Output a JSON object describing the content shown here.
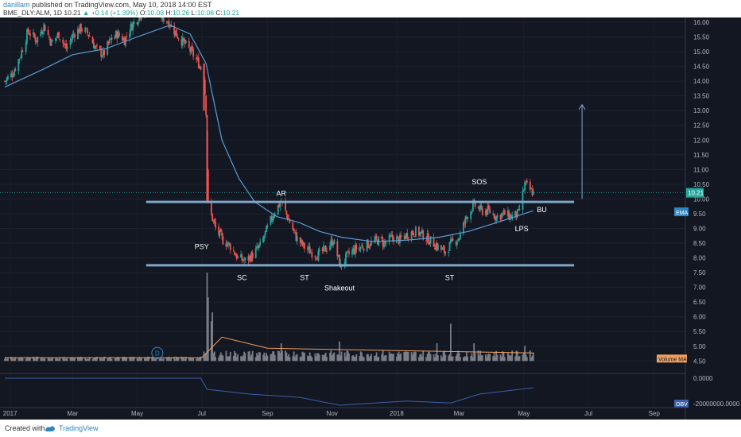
{
  "header": {
    "user": "danillam",
    "published": "published on TradingView.com, May 10, 2018 14:00 EST",
    "symbol": "BME_DLY:ALM, 1D",
    "last": "10.21",
    "change": "+0.14 (+1.39%)",
    "o_label": "O:",
    "o": "10.08",
    "h_label": "H:",
    "h": "10.26",
    "l_label": "L:",
    "l": "10.08",
    "c_label": "C:",
    "c": "10.21"
  },
  "footer": {
    "created_with": "Created with",
    "brand": "TradingView"
  },
  "colors": {
    "background": "#131722",
    "up": "#26a69a",
    "down": "#ef5350",
    "ema": "#5b9bd5",
    "range_lines": "#7fa7c9",
    "annotation_text": "#ffffff",
    "volume": "#7a7d85",
    "volume_ma": "#f0a060",
    "obv": "#3d5fa8"
  },
  "chart_data": {
    "type": "candlestick",
    "symbol": "BME_DLY:ALM",
    "interval": "1D",
    "x_ticks": [
      "2017",
      "Mar",
      "May",
      "Jul",
      "Sep",
      "Nov",
      "2018",
      "Mar",
      "May",
      "Jul",
      "Sep"
    ],
    "y_ticks": [
      "16.00",
      "15.50",
      "15.00",
      "14.50",
      "14.00",
      "13.50",
      "13.00",
      "12.50",
      "12.00",
      "11.50",
      "11.00",
      "10.50",
      "10.00",
      "9.50",
      "9.00",
      "8.50",
      "8.00",
      "7.50",
      "7.00",
      "6.50",
      "6.00",
      "5.50",
      "5.00",
      "4.50"
    ],
    "ylim": [
      4.4,
      16.0
    ],
    "price_path": [
      [
        "2016-12-27",
        14.0
      ],
      [
        "2017-01-04",
        14.3
      ],
      [
        "2017-01-11",
        14.9
      ],
      [
        "2017-01-18",
        15.7
      ],
      [
        "2017-01-26",
        15.4
      ],
      [
        "2017-02-02",
        15.9
      ],
      [
        "2017-02-09",
        15.3
      ],
      [
        "2017-02-16",
        15.6
      ],
      [
        "2017-02-23",
        15.1
      ],
      [
        "2017-03-02",
        15.6
      ],
      [
        "2017-03-09",
        15.8
      ],
      [
        "2017-03-16",
        15.6
      ],
      [
        "2017-03-23",
        15.1
      ],
      [
        "2017-03-30",
        14.9
      ],
      [
        "2017-04-06",
        15.4
      ],
      [
        "2017-04-12",
        15.6
      ],
      [
        "2017-04-19",
        15.4
      ],
      [
        "2017-04-26",
        15.9
      ],
      [
        "2017-05-03",
        16.2
      ],
      [
        "2017-05-10",
        16.6
      ],
      [
        "2017-05-17",
        16.4
      ],
      [
        "2017-05-24",
        16.2
      ],
      [
        "2017-05-31",
        16.0
      ],
      [
        "2017-06-07",
        15.6
      ],
      [
        "2017-06-14",
        15.3
      ],
      [
        "2017-06-21",
        15.0
      ],
      [
        "2017-06-28",
        14.6
      ],
      [
        "2017-07-03",
        14.2
      ],
      [
        "2017-07-05",
        13.0
      ],
      [
        "2017-07-06",
        11.0
      ],
      [
        "2017-07-07",
        9.8
      ],
      [
        "2017-07-14",
        9.0
      ],
      [
        "2017-07-21",
        8.6
      ],
      [
        "2017-07-28",
        8.4
      ],
      [
        "2017-08-04",
        8.0
      ],
      [
        "2017-08-11",
        7.9
      ],
      [
        "2017-08-18",
        8.1
      ],
      [
        "2017-08-25",
        8.4
      ],
      [
        "2017-09-01",
        9.0
      ],
      [
        "2017-09-08",
        9.6
      ],
      [
        "2017-09-14",
        9.9
      ],
      [
        "2017-09-21",
        9.3
      ],
      [
        "2017-09-28",
        8.7
      ],
      [
        "2017-10-05",
        8.4
      ],
      [
        "2017-10-12",
        8.2
      ],
      [
        "2017-10-19",
        8.1
      ],
      [
        "2017-10-26",
        8.3
      ],
      [
        "2017-11-02",
        8.6
      ],
      [
        "2017-11-09",
        7.7
      ],
      [
        "2017-11-16",
        8.1
      ],
      [
        "2017-11-23",
        8.3
      ],
      [
        "2017-11-30",
        8.4
      ],
      [
        "2017-12-07",
        8.5
      ],
      [
        "2017-12-14",
        8.6
      ],
      [
        "2017-12-21",
        8.5
      ],
      [
        "2017-12-28",
        8.7
      ],
      [
        "2018-01-04",
        8.6
      ],
      [
        "2018-01-11",
        8.8
      ],
      [
        "2018-01-18",
        8.9
      ],
      [
        "2018-01-25",
        8.8
      ],
      [
        "2018-02-01",
        8.6
      ],
      [
        "2018-02-08",
        8.4
      ],
      [
        "2018-02-15",
        8.2
      ],
      [
        "2018-02-22",
        8.5
      ],
      [
        "2018-03-01",
        8.7
      ],
      [
        "2018-03-08",
        9.4
      ],
      [
        "2018-03-15",
        9.8
      ],
      [
        "2018-03-22",
        9.6
      ],
      [
        "2018-03-29",
        9.6
      ],
      [
        "2018-04-05",
        9.4
      ],
      [
        "2018-04-12",
        9.5
      ],
      [
        "2018-04-19",
        9.4
      ],
      [
        "2018-04-26",
        9.5
      ],
      [
        "2018-05-02",
        10.5
      ],
      [
        "2018-05-07",
        10.3
      ],
      [
        "2018-05-10",
        10.21
      ]
    ],
    "ema": [
      [
        "2016-12-27",
        13.8
      ],
      [
        "2017-02-01",
        14.4
      ],
      [
        "2017-03-01",
        14.9
      ],
      [
        "2017-04-01",
        15.1
      ],
      [
        "2017-05-01",
        15.5
      ],
      [
        "2017-06-01",
        15.9
      ],
      [
        "2017-06-20",
        15.6
      ],
      [
        "2017-07-05",
        14.6
      ],
      [
        "2017-07-20",
        12.0
      ],
      [
        "2017-08-05",
        10.7
      ],
      [
        "2017-08-20",
        9.9
      ],
      [
        "2017-09-10",
        9.4
      ],
      [
        "2017-10-01",
        9.2
      ],
      [
        "2017-10-20",
        8.9
      ],
      [
        "2017-11-10",
        8.7
      ],
      [
        "2017-12-10",
        8.55
      ],
      [
        "2018-01-10",
        8.6
      ],
      [
        "2018-02-10",
        8.7
      ],
      [
        "2018-03-10",
        8.9
      ],
      [
        "2018-04-10",
        9.25
      ],
      [
        "2018-05-10",
        9.6
      ]
    ],
    "resistance": {
      "value": 9.9,
      "from": "2017-07-01",
      "to": "2018-07-22"
    },
    "support": {
      "value": 7.75,
      "from": "2017-07-01",
      "to": "2018-07-22"
    },
    "target_arrow": {
      "x": "2018-06-25",
      "from": 10.0,
      "to": 13.2
    },
    "annotations": [
      {
        "label": "PSY",
        "x": "2017-07-01",
        "y": 8.3
      },
      {
        "label": "SC",
        "x": "2017-08-08",
        "y": 7.25
      },
      {
        "label": "AR",
        "x": "2017-09-14",
        "y": 10.1
      },
      {
        "label": "ST",
        "x": "2017-10-06",
        "y": 7.25
      },
      {
        "label": "Shakeout",
        "x": "2017-11-08",
        "y": 6.9
      },
      {
        "label": "ST",
        "x": "2018-02-20",
        "y": 7.25
      },
      {
        "label": "SOS",
        "x": "2018-03-20",
        "y": 10.5
      },
      {
        "label": "BU",
        "x": "2018-05-18",
        "y": 9.55
      },
      {
        "label": "LPS",
        "x": "2018-04-29",
        "y": 8.9
      }
    ],
    "price_label": "10.21",
    "ema_label": "EMA",
    "volume_label": "Volume MA",
    "obv_label": "OBV",
    "obv_axis_ticks": [
      "0.0000",
      "-20000000.0000"
    ],
    "event_marker": "D",
    "volume_spikes": [
      [
        "2017-07-06",
        1.0
      ],
      [
        "2017-07-07",
        0.72
      ],
      [
        "2017-07-10",
        0.45
      ],
      [
        "2017-07-11",
        0.55
      ],
      [
        "2017-09-14",
        0.2
      ],
      [
        "2017-11-08",
        0.22
      ],
      [
        "2018-02-21",
        0.42
      ],
      [
        "2018-02-08",
        0.2
      ],
      [
        "2018-03-15",
        0.2
      ],
      [
        "2018-05-02",
        0.17
      ]
    ],
    "obv_path": [
      [
        "2016-12-27",
        0.0
      ],
      [
        "2017-06-30",
        0.0
      ],
      [
        "2017-07-06",
        -0.35
      ],
      [
        "2017-08-15",
        -0.5
      ],
      [
        "2017-10-01",
        -0.6
      ],
      [
        "2017-11-08",
        -0.85
      ],
      [
        "2018-01-10",
        -0.72
      ],
      [
        "2018-02-21",
        -0.78
      ],
      [
        "2018-03-20",
        -0.5
      ],
      [
        "2018-05-10",
        -0.3
      ]
    ]
  }
}
